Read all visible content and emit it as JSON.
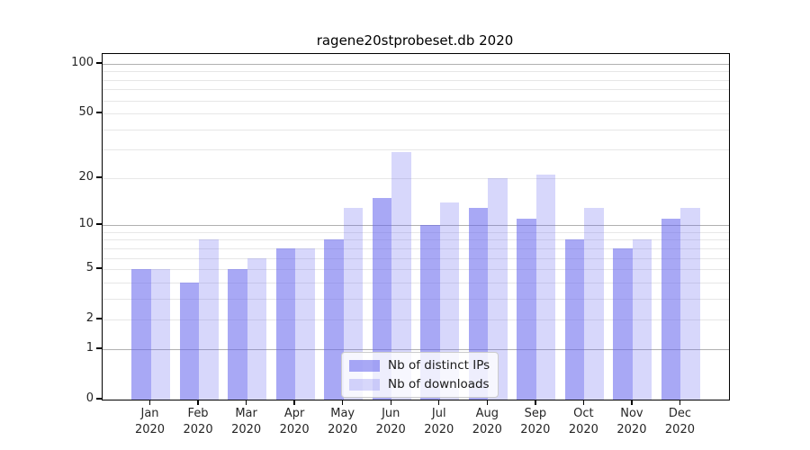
{
  "title": "ragene20stprobeset.db 2020",
  "colors": {
    "bar_base": "#6666ee",
    "bar_alpha_ips": 0.57,
    "bar_alpha_downloads": 0.26,
    "grid_major": "#b0b0b0",
    "grid_minor": "#e7e7e7",
    "spine": "#000000",
    "text": "#262626",
    "legend_border": "#cccccc"
  },
  "chart_data": {
    "type": "bar",
    "title": "ragene20stprobeset.db 2020",
    "categories": [
      "Jan",
      "Feb",
      "Mar",
      "Apr",
      "May",
      "Jun",
      "Jul",
      "Aug",
      "Sep",
      "Oct",
      "Nov",
      "Dec"
    ],
    "year_label": "2020",
    "series": [
      {
        "name": "Nb of distinct IPs",
        "values": [
          5,
          4,
          5,
          7,
          8,
          15,
          10,
          13,
          11,
          8,
          7,
          11
        ]
      },
      {
        "name": "Nb of downloads",
        "values": [
          5,
          8,
          6,
          7,
          13,
          29,
          14,
          20,
          21,
          13,
          8,
          13
        ]
      }
    ],
    "yscale": "log(value+1)",
    "ylim": [
      0,
      114.5
    ],
    "ytick_labels": [
      "100",
      "50",
      "20",
      "10",
      "5",
      "2",
      "1",
      "0"
    ],
    "ytick_values": [
      100,
      50,
      20,
      10,
      5,
      2,
      1,
      0
    ],
    "grid_major_values": [
      1,
      10,
      100
    ],
    "grid_minor_values": [
      2,
      3,
      4,
      5,
      6,
      7,
      8,
      9,
      20,
      30,
      40,
      50,
      60,
      70,
      80,
      90
    ],
    "grid": "horizontal",
    "legend_position": "lower-center-inside",
    "xlabel": "",
    "ylabel": ""
  }
}
